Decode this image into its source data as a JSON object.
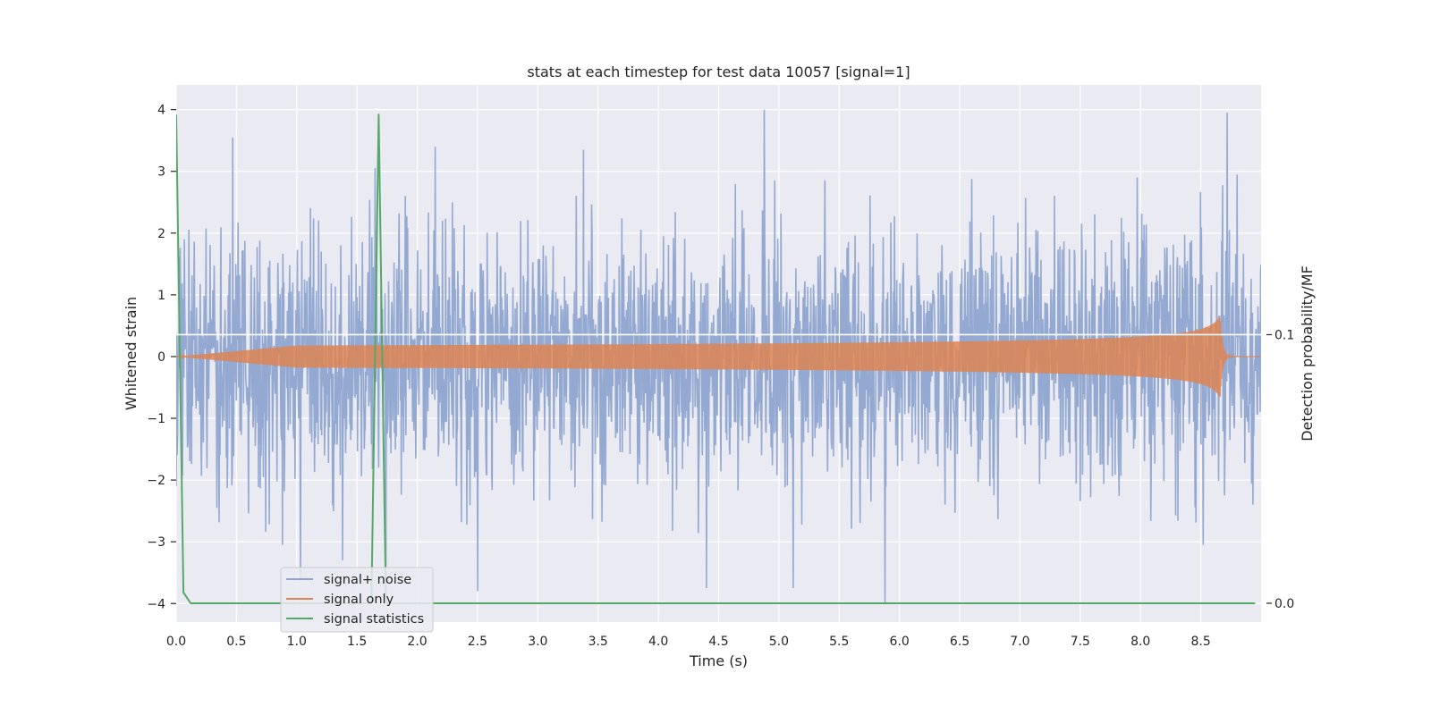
{
  "chart_data": {
    "type": "line",
    "title": "stats at each timestep for test data 10057 [signal=1]",
    "xlabel": "Time (s)",
    "ylabel": "Whitened strain",
    "ylabel_right": "Detection probability/MF",
    "xlim": [
      0,
      9.0
    ],
    "ylim": [
      -4.3,
      4.4
    ],
    "ylim_right": [
      -0.007,
      0.193
    ],
    "x_ticks": [
      0,
      0.5,
      1.0,
      1.5,
      2.0,
      2.5,
      3.0,
      3.5,
      4.0,
      4.5,
      5.0,
      5.5,
      6.0,
      6.5,
      7.0,
      7.5,
      8.0,
      8.5
    ],
    "x_tick_labels": [
      "0.0",
      "0.5",
      "1.0",
      "1.5",
      "2.0",
      "2.5",
      "3.0",
      "3.5",
      "4.0",
      "4.5",
      "5.0",
      "5.5",
      "6.0",
      "6.5",
      "7.0",
      "7.5",
      "8.0",
      "8.5"
    ],
    "y_ticks": [
      4,
      3,
      2,
      1,
      0,
      -1,
      -2,
      -3,
      -4
    ],
    "y_tick_labels": [
      "4",
      "3",
      "2",
      "1",
      "0",
      "−1",
      "−2",
      "−3",
      "−4"
    ],
    "y_right_ticks": [
      0.1,
      0.0
    ],
    "y_right_tick_labels": [
      "0.1",
      "0.0"
    ],
    "grid": true,
    "legend_position": "lower-left",
    "series": [
      {
        "name": "signal+ noise",
        "color": "#8fa5cf",
        "kind": "noise",
        "noise_sigma": 1.0,
        "noise_extremes": [
          [
            0.47,
            3.55
          ],
          [
            0.88,
            -3.05
          ],
          [
            1.03,
            -3.6
          ],
          [
            1.38,
            -3.3
          ],
          [
            1.65,
            3.05
          ],
          [
            1.74,
            -3.4
          ],
          [
            2.15,
            3.4
          ],
          [
            2.5,
            -3.8
          ],
          [
            3.38,
            3.35
          ],
          [
            4.4,
            -3.75
          ],
          [
            4.88,
            4.0
          ],
          [
            5.12,
            -3.75
          ],
          [
            5.88,
            -4.0
          ],
          [
            8.72,
            3.95
          ],
          [
            8.52,
            -3.05
          ],
          [
            8.8,
            2.95
          ]
        ]
      },
      {
        "name": "signal only",
        "color": "#dd8452",
        "kind": "chirp",
        "chirp_merger_time": 8.66,
        "chirp_peak_amplitude": 0.68,
        "chirp_start_time": 1.0
      },
      {
        "name": "signal statistics",
        "color": "#55a868",
        "kind": "line",
        "axis": "right",
        "x": [
          0,
          0.06,
          0.12,
          1.62,
          1.68,
          1.74,
          8.95
        ],
        "values": [
          0.182,
          0.004,
          0.0,
          0.0,
          0.182,
          0.0,
          0.0
        ]
      }
    ],
    "annotations": [
      {
        "type": "hline",
        "axis": "right",
        "value": 0.1,
        "color": "#ffffff"
      }
    ]
  }
}
